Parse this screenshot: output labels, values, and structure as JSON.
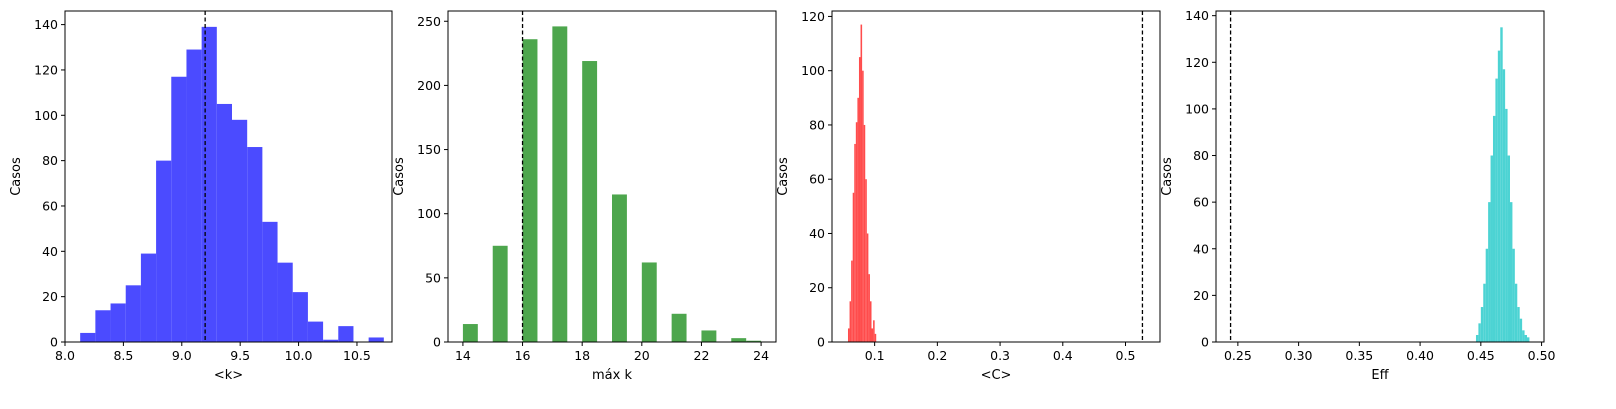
{
  "chart_data": [
    {
      "type": "bar",
      "xlabel": "<k>",
      "ylabel": "Casos",
      "xlim": [
        8.0,
        10.8
      ],
      "ylim": [
        0,
        146
      ],
      "xticks": [
        8.0,
        8.5,
        9.0,
        9.5,
        10.0,
        10.5
      ],
      "xtick_labels": [
        "8.0",
        "8.5",
        "9.0",
        "9.5",
        "10.0",
        "10.5"
      ],
      "yticks": [
        0,
        20,
        40,
        60,
        80,
        100,
        120,
        140
      ],
      "ytick_labels": [
        "0",
        "20",
        "40",
        "60",
        "80",
        "100",
        "120",
        "140"
      ],
      "color": "#4b4bff",
      "bins": [
        {
          "x0": 8.13,
          "x1": 8.26,
          "count": 4
        },
        {
          "x0": 8.26,
          "x1": 8.39,
          "count": 14
        },
        {
          "x0": 8.39,
          "x1": 8.52,
          "count": 17
        },
        {
          "x0": 8.52,
          "x1": 8.65,
          "count": 25
        },
        {
          "x0": 8.65,
          "x1": 8.78,
          "count": 39
        },
        {
          "x0": 8.78,
          "x1": 8.91,
          "count": 80
        },
        {
          "x0": 8.91,
          "x1": 9.04,
          "count": 117
        },
        {
          "x0": 9.04,
          "x1": 9.17,
          "count": 129
        },
        {
          "x0": 9.17,
          "x1": 9.3,
          "count": 139
        },
        {
          "x0": 9.3,
          "x1": 9.43,
          "count": 105
        },
        {
          "x0": 9.43,
          "x1": 9.56,
          "count": 98
        },
        {
          "x0": 9.56,
          "x1": 9.69,
          "count": 86
        },
        {
          "x0": 9.69,
          "x1": 9.82,
          "count": 53
        },
        {
          "x0": 9.82,
          "x1": 9.95,
          "count": 35
        },
        {
          "x0": 9.95,
          "x1": 10.08,
          "count": 22
        },
        {
          "x0": 10.08,
          "x1": 10.21,
          "count": 9
        },
        {
          "x0": 10.21,
          "x1": 10.34,
          "count": 1
        },
        {
          "x0": 10.34,
          "x1": 10.47,
          "count": 7
        },
        {
          "x0": 10.47,
          "x1": 10.6,
          "count": 0
        },
        {
          "x0": 10.6,
          "x1": 10.73,
          "count": 2
        }
      ],
      "reference_line": 9.2
    },
    {
      "type": "bar",
      "xlabel": "máx k",
      "ylabel": "Casos",
      "xlim": [
        13.5,
        24.5
      ],
      "ylim": [
        0,
        258
      ],
      "xticks": [
        14,
        16,
        18,
        20,
        22,
        24
      ],
      "xtick_labels": [
        "14",
        "16",
        "18",
        "20",
        "22",
        "24"
      ],
      "yticks": [
        0,
        50,
        100,
        150,
        200,
        250
      ],
      "ytick_labels": [
        "0",
        "50",
        "100",
        "150",
        "200",
        "250"
      ],
      "color": "#4da64d",
      "bins": [
        {
          "x0": 14.0,
          "x1": 14.5,
          "count": 14
        },
        {
          "x0": 15.0,
          "x1": 15.5,
          "count": 75
        },
        {
          "x0": 16.0,
          "x1": 16.5,
          "count": 236
        },
        {
          "x0": 17.0,
          "x1": 17.5,
          "count": 246
        },
        {
          "x0": 18.0,
          "x1": 18.5,
          "count": 219
        },
        {
          "x0": 19.0,
          "x1": 19.5,
          "count": 115
        },
        {
          "x0": 20.0,
          "x1": 20.5,
          "count": 62
        },
        {
          "x0": 21.0,
          "x1": 21.5,
          "count": 22
        },
        {
          "x0": 22.0,
          "x1": 22.5,
          "count": 9
        },
        {
          "x0": 23.0,
          "x1": 23.5,
          "count": 3
        },
        {
          "x0": 23.5,
          "x1": 24.0,
          "count": 1
        }
      ],
      "reference_line": 16.0
    },
    {
      "type": "bar",
      "xlabel": "<C>",
      "ylabel": "Casos",
      "xlim": [
        0.032,
        0.555
      ],
      "ylim": [
        0,
        122
      ],
      "xticks": [
        0.1,
        0.2,
        0.3,
        0.4,
        0.5
      ],
      "xtick_labels": [
        "0.1",
        "0.2",
        "0.3",
        "0.4",
        "0.5"
      ],
      "yticks": [
        0,
        20,
        40,
        60,
        80,
        100,
        120
      ],
      "ytick_labels": [
        "0",
        "20",
        "40",
        "60",
        "80",
        "100",
        "120"
      ],
      "color": "#ff4c4c",
      "bins": [
        {
          "x0": 0.0575,
          "x1": 0.06,
          "count": 5
        },
        {
          "x0": 0.06,
          "x1": 0.0625,
          "count": 15
        },
        {
          "x0": 0.0625,
          "x1": 0.065,
          "count": 30
        },
        {
          "x0": 0.065,
          "x1": 0.0675,
          "count": 55
        },
        {
          "x0": 0.0675,
          "x1": 0.07,
          "count": 73
        },
        {
          "x0": 0.07,
          "x1": 0.0725,
          "count": 81
        },
        {
          "x0": 0.0725,
          "x1": 0.075,
          "count": 90
        },
        {
          "x0": 0.075,
          "x1": 0.0775,
          "count": 105
        },
        {
          "x0": 0.0775,
          "x1": 0.08,
          "count": 117
        },
        {
          "x0": 0.08,
          "x1": 0.0825,
          "count": 100
        },
        {
          "x0": 0.0825,
          "x1": 0.085,
          "count": 80
        },
        {
          "x0": 0.085,
          "x1": 0.0875,
          "count": 60
        },
        {
          "x0": 0.0875,
          "x1": 0.09,
          "count": 40
        },
        {
          "x0": 0.09,
          "x1": 0.0925,
          "count": 25
        },
        {
          "x0": 0.0925,
          "x1": 0.095,
          "count": 15
        },
        {
          "x0": 0.095,
          "x1": 0.0975,
          "count": 5
        },
        {
          "x0": 0.0975,
          "x1": 0.1,
          "count": 8
        },
        {
          "x0": 0.1,
          "x1": 0.1025,
          "count": 3
        }
      ],
      "reference_line": 0.527
    },
    {
      "type": "bar",
      "xlabel": "Eff",
      "ylabel": "Casos",
      "xlim": [
        0.232,
        0.502
      ],
      "ylim": [
        0,
        142
      ],
      "xticks": [
        0.25,
        0.3,
        0.35,
        0.4,
        0.45,
        0.5
      ],
      "xtick_labels": [
        "0.25",
        "0.30",
        "0.35",
        "0.40",
        "0.45",
        "0.50"
      ],
      "yticks": [
        0,
        20,
        40,
        60,
        80,
        100,
        120,
        140
      ],
      "ytick_labels": [
        "0",
        "20",
        "40",
        "60",
        "80",
        "100",
        "120",
        "140"
      ],
      "color": "#4cd3d3",
      "bins": [
        {
          "x0": 0.446,
          "x1": 0.448,
          "count": 3
        },
        {
          "x0": 0.448,
          "x1": 0.45,
          "count": 8
        },
        {
          "x0": 0.45,
          "x1": 0.452,
          "count": 15
        },
        {
          "x0": 0.452,
          "x1": 0.454,
          "count": 25
        },
        {
          "x0": 0.454,
          "x1": 0.456,
          "count": 40
        },
        {
          "x0": 0.456,
          "x1": 0.458,
          "count": 60
        },
        {
          "x0": 0.458,
          "x1": 0.46,
          "count": 80
        },
        {
          "x0": 0.46,
          "x1": 0.462,
          "count": 97
        },
        {
          "x0": 0.462,
          "x1": 0.464,
          "count": 113
        },
        {
          "x0": 0.464,
          "x1": 0.466,
          "count": 125
        },
        {
          "x0": 0.466,
          "x1": 0.468,
          "count": 135
        },
        {
          "x0": 0.468,
          "x1": 0.47,
          "count": 117
        },
        {
          "x0": 0.47,
          "x1": 0.472,
          "count": 100
        },
        {
          "x0": 0.472,
          "x1": 0.474,
          "count": 80
        },
        {
          "x0": 0.474,
          "x1": 0.476,
          "count": 60
        },
        {
          "x0": 0.476,
          "x1": 0.478,
          "count": 40
        },
        {
          "x0": 0.478,
          "x1": 0.48,
          "count": 25
        },
        {
          "x0": 0.48,
          "x1": 0.482,
          "count": 15
        },
        {
          "x0": 0.482,
          "x1": 0.484,
          "count": 10
        },
        {
          "x0": 0.484,
          "x1": 0.486,
          "count": 5
        },
        {
          "x0": 0.486,
          "x1": 0.488,
          "count": 3
        },
        {
          "x0": 0.488,
          "x1": 0.49,
          "count": 2
        }
      ],
      "reference_line": 0.244
    }
  ]
}
